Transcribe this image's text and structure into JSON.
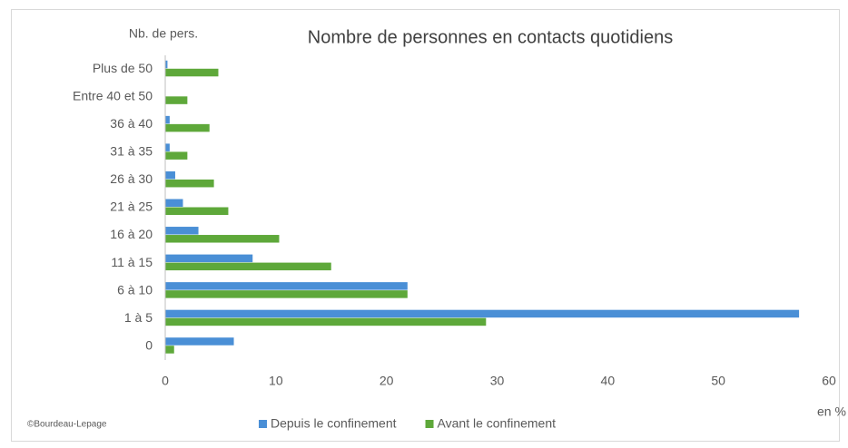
{
  "chart_data": {
    "type": "barh",
    "title": "Nombre de personnes en contacts quotidiens",
    "ylabel": "Nb. de pers.",
    "xlabel": "en %",
    "annotation": "©Bourdeau-Lepage",
    "categories": [
      "0",
      "1 à 5",
      "6 à 10",
      "11 à 15",
      "16 à 20",
      "21 à 25",
      "26 à 30",
      "31 à 35",
      "36 à 40",
      "Entre 40 et 50",
      "Plus de 50"
    ],
    "series": [
      {
        "name": "Depuis le confinement",
        "color": "#4a8fd6",
        "values": [
          6.2,
          57.3,
          21.9,
          7.9,
          3.0,
          1.6,
          0.9,
          0.4,
          0.4,
          0,
          0.2
        ]
      },
      {
        "name": "Avant le confinement",
        "color": "#5ea83a",
        "values": [
          0.8,
          29.0,
          21.9,
          15.0,
          10.3,
          5.7,
          4.4,
          2.0,
          4.0,
          2.0,
          4.8
        ]
      }
    ],
    "xlim": [
      0,
      60
    ],
    "xticks": [
      0,
      10,
      20,
      30,
      40,
      50,
      60
    ],
    "grid": false,
    "legend": "bottom"
  }
}
